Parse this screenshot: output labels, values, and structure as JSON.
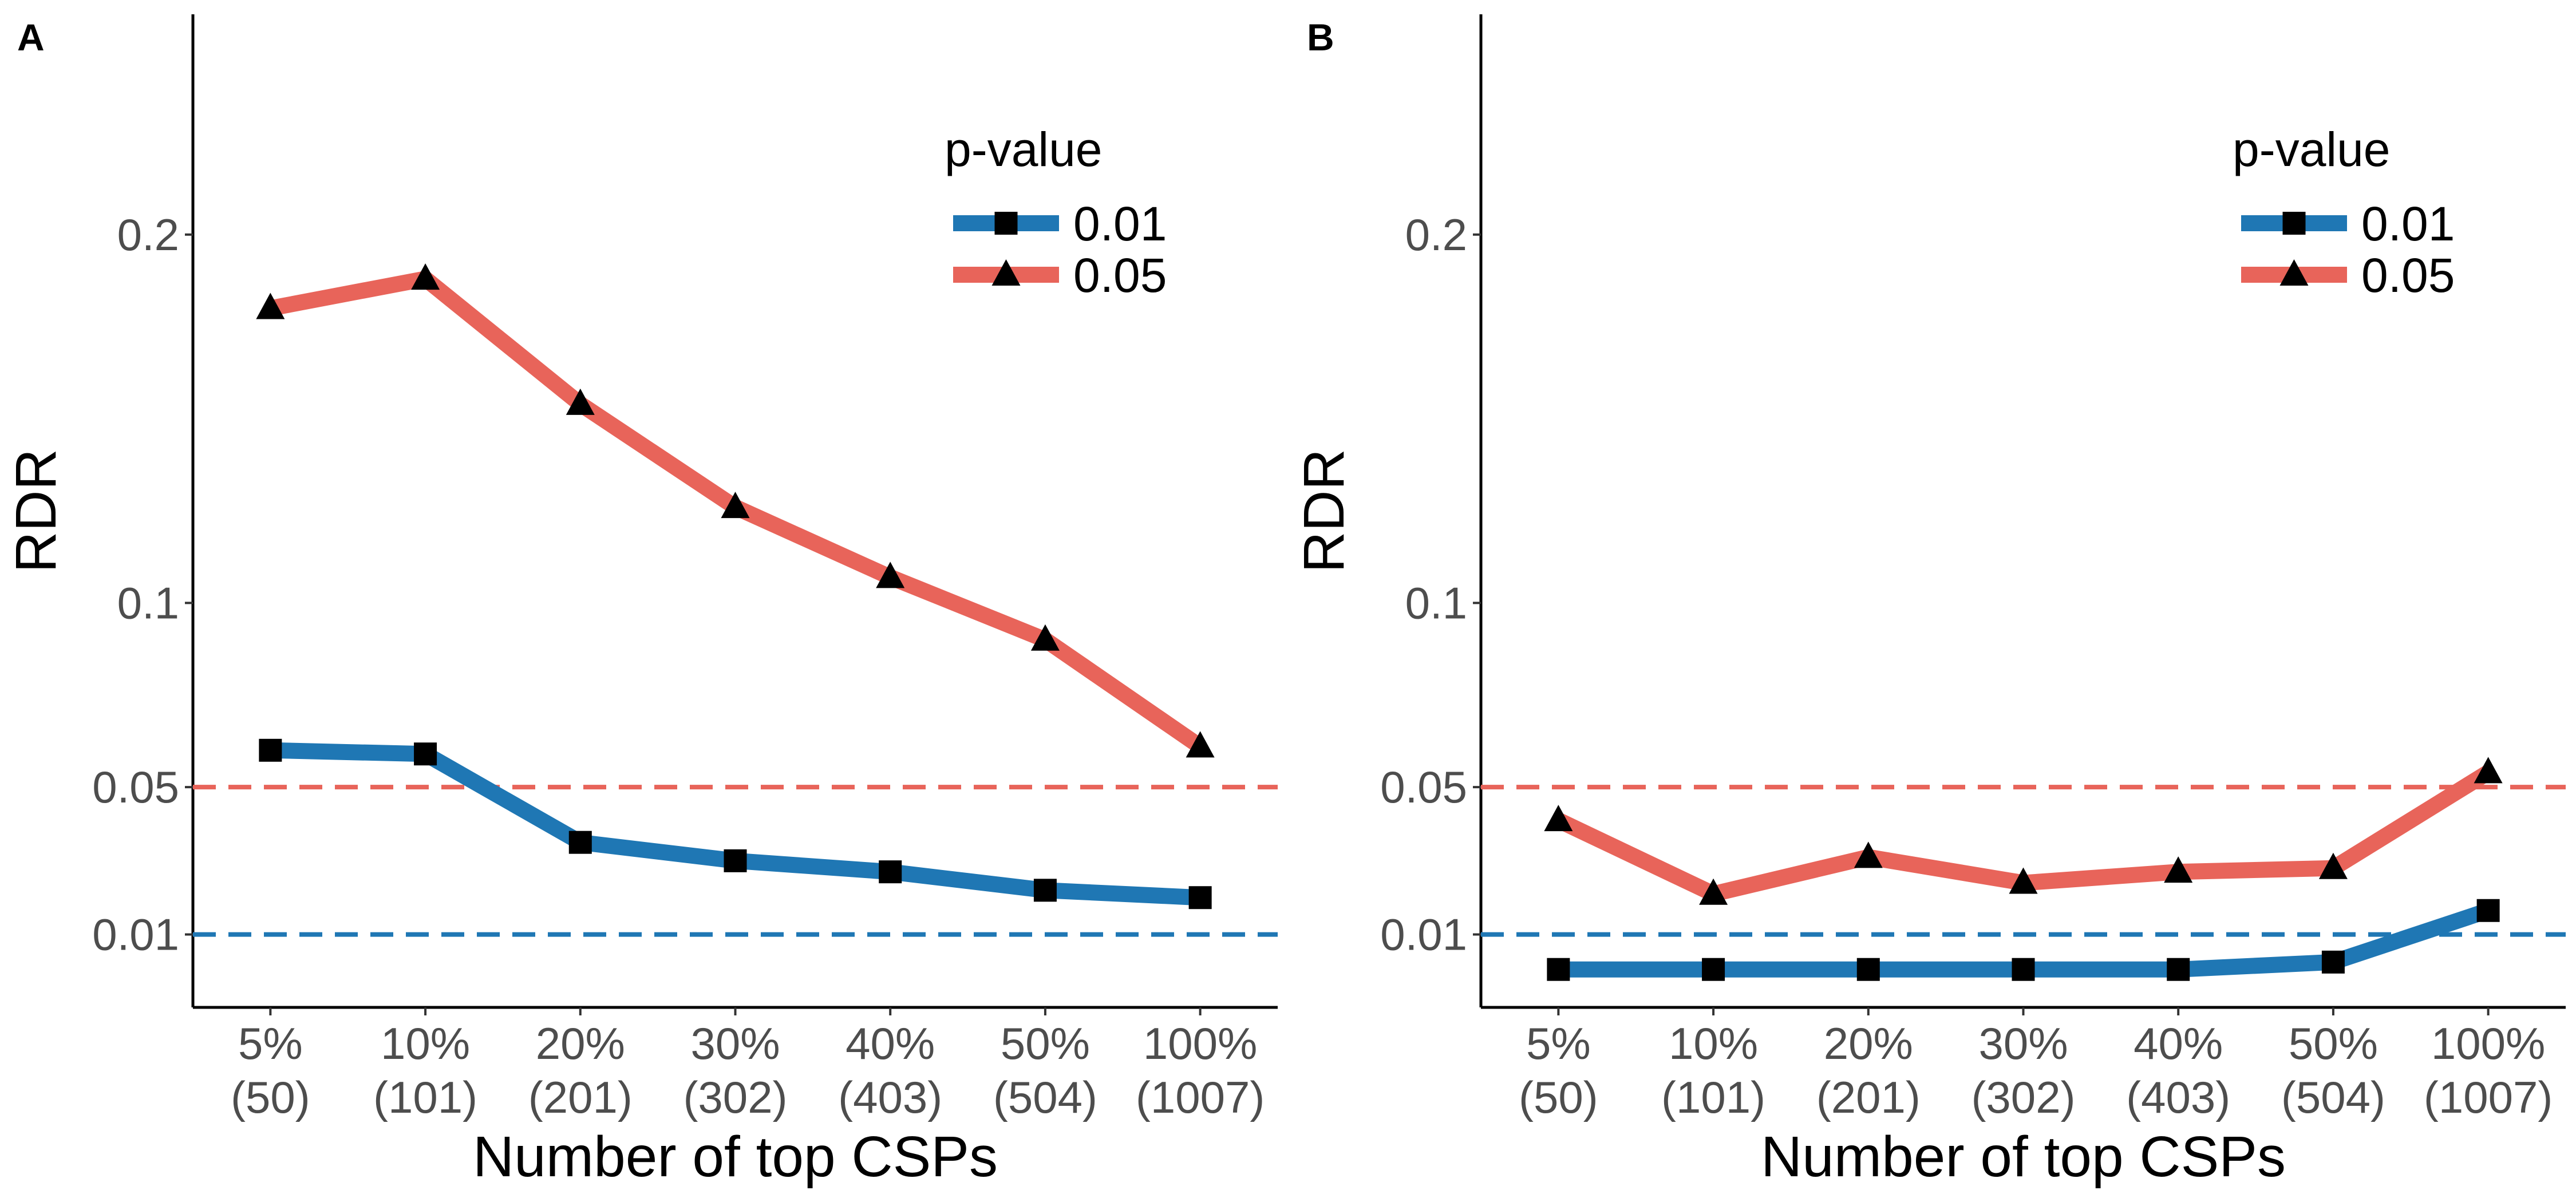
{
  "chart_data": [
    {
      "panel": "A",
      "type": "line",
      "categories": [
        "5%\n(50)",
        "10%\n(101)",
        "20%\n(201)",
        "30%\n(302)",
        "40%\n(403)",
        "50%\n(504)",
        "100%\n(1007)"
      ],
      "xlabel": "Number of top CSPs",
      "ylabel": "RDR",
      "y_ticks": [
        "0.01",
        "0.05",
        "0.1",
        "0.2"
      ],
      "ylim": [
        -0.0098,
        0.2598
      ],
      "reference_lines": [
        {
          "value": 0.05,
          "color": "#e8645a",
          "style": "dashed"
        },
        {
          "value": 0.01,
          "color": "#1f77b4",
          "style": "dashed"
        }
      ],
      "legend": {
        "title": "p-value",
        "placement": "top-right"
      },
      "series": [
        {
          "name": "0.01",
          "color": "#1f77b4",
          "marker": "square",
          "values": [
            0.06,
            0.059,
            0.035,
            0.03,
            0.027,
            0.022,
            0.02
          ]
        },
        {
          "name": "0.05",
          "color": "#e8645a",
          "marker": "triangle",
          "values": [
            0.18,
            0.188,
            0.154,
            0.126,
            0.107,
            0.09,
            0.061
          ]
        }
      ]
    },
    {
      "panel": "B",
      "type": "line",
      "categories": [
        "5%\n(50)",
        "10%\n(101)",
        "20%\n(201)",
        "30%\n(302)",
        "40%\n(403)",
        "50%\n(504)",
        "100%\n(1007)"
      ],
      "xlabel": "Number of top CSPs",
      "ylabel": "RDR",
      "y_ticks": [
        "0.01",
        "0.05",
        "0.1",
        "0.2"
      ],
      "ylim": [
        -0.0098,
        0.2598
      ],
      "reference_lines": [
        {
          "value": 0.05,
          "color": "#e8645a",
          "style": "dashed"
        },
        {
          "value": 0.01,
          "color": "#1f77b4",
          "style": "dashed"
        }
      ],
      "legend": {
        "title": "p-value",
        "placement": "top-right"
      },
      "series": [
        {
          "name": "0.01",
          "color": "#1f77b4",
          "marker": "square",
          "values": [
            0.0005,
            0.0005,
            0.0005,
            0.0005,
            0.0005,
            0.0025,
            0.0165
          ]
        },
        {
          "name": "0.05",
          "color": "#e8645a",
          "marker": "triangle",
          "values": [
            0.041,
            0.021,
            0.031,
            0.024,
            0.027,
            0.028,
            0.054
          ]
        }
      ]
    }
  ]
}
